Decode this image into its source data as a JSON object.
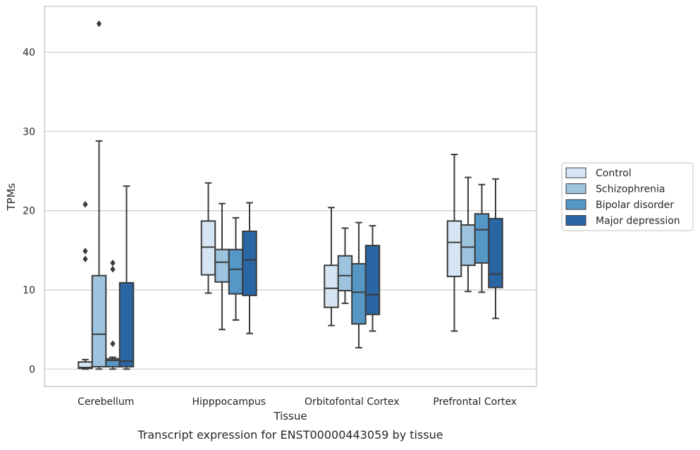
{
  "chart_data": {
    "type": "box",
    "title": "",
    "caption": "Transcript expression for ENST00000443059 by tissue",
    "xlabel": "Tissue",
    "ylabel": "TPMs",
    "ylim": [
      -2.2,
      45.8
    ],
    "yticks": [
      0,
      10,
      20,
      30,
      40
    ],
    "grid": "horizontal",
    "legend_position": "right",
    "categories": [
      "Cerebellum",
      "Hipppocampus",
      "Orbitofontal Cortex",
      "Prefrontal Cortex"
    ],
    "series": [
      {
        "name": "Control",
        "color": "#d6e5f3",
        "boxes": [
          {
            "whislo": 0.0,
            "q1": 0.1,
            "med": 0.2,
            "q3": 0.9,
            "whishi": 1.2,
            "fliers": [
              13.9,
              14.9,
              20.8
            ]
          },
          {
            "whislo": 9.6,
            "q1": 11.9,
            "med": 15.4,
            "q3": 18.7,
            "whishi": 23.5,
            "fliers": []
          },
          {
            "whislo": 5.5,
            "q1": 7.8,
            "med": 10.2,
            "q3": 13.1,
            "whishi": 20.4,
            "fliers": []
          },
          {
            "whislo": 4.8,
            "q1": 11.7,
            "med": 16.0,
            "q3": 18.7,
            "whishi": 27.1,
            "fliers": []
          }
        ]
      },
      {
        "name": "Schizophrenia",
        "color": "#9dc3df",
        "boxes": [
          {
            "whislo": 0.0,
            "q1": 0.3,
            "med": 4.4,
            "q3": 11.8,
            "whishi": 28.8,
            "fliers": [
              43.6
            ]
          },
          {
            "whislo": 5.0,
            "q1": 11.0,
            "med": 13.5,
            "q3": 15.1,
            "whishi": 20.9,
            "fliers": []
          },
          {
            "whislo": 8.3,
            "q1": 9.9,
            "med": 11.8,
            "q3": 14.3,
            "whishi": 17.8,
            "fliers": []
          },
          {
            "whislo": 9.8,
            "q1": 13.1,
            "med": 15.4,
            "q3": 18.2,
            "whishi": 24.2,
            "fliers": []
          }
        ]
      },
      {
        "name": "Bipolar disorder",
        "color": "#5597c6",
        "boxes": [
          {
            "whislo": 0.0,
            "q1": 0.3,
            "med": 1.1,
            "q3": 1.3,
            "whishi": 1.5,
            "fliers": [
              3.2,
              12.6,
              13.4
            ]
          },
          {
            "whislo": 6.2,
            "q1": 9.5,
            "med": 12.6,
            "q3": 15.1,
            "whishi": 19.1,
            "fliers": []
          },
          {
            "whislo": 2.7,
            "q1": 5.7,
            "med": 9.7,
            "q3": 13.3,
            "whishi": 18.5,
            "fliers": []
          },
          {
            "whislo": 9.7,
            "q1": 13.4,
            "med": 17.6,
            "q3": 19.6,
            "whishi": 23.3,
            "fliers": []
          }
        ]
      },
      {
        "name": "Major depression",
        "color": "#2a65a4",
        "boxes": [
          {
            "whislo": 0.0,
            "q1": 0.3,
            "med": 1.0,
            "q3": 10.9,
            "whishi": 23.1,
            "fliers": []
          },
          {
            "whislo": 4.5,
            "q1": 9.3,
            "med": 13.8,
            "q3": 17.4,
            "whishi": 21.0,
            "fliers": []
          },
          {
            "whislo": 4.8,
            "q1": 6.9,
            "med": 9.4,
            "q3": 15.6,
            "whishi": 18.1,
            "fliers": []
          },
          {
            "whislo": 6.4,
            "q1": 10.3,
            "med": 12.0,
            "q3": 19.0,
            "whishi": 24.0,
            "fliers": []
          }
        ]
      }
    ]
  }
}
